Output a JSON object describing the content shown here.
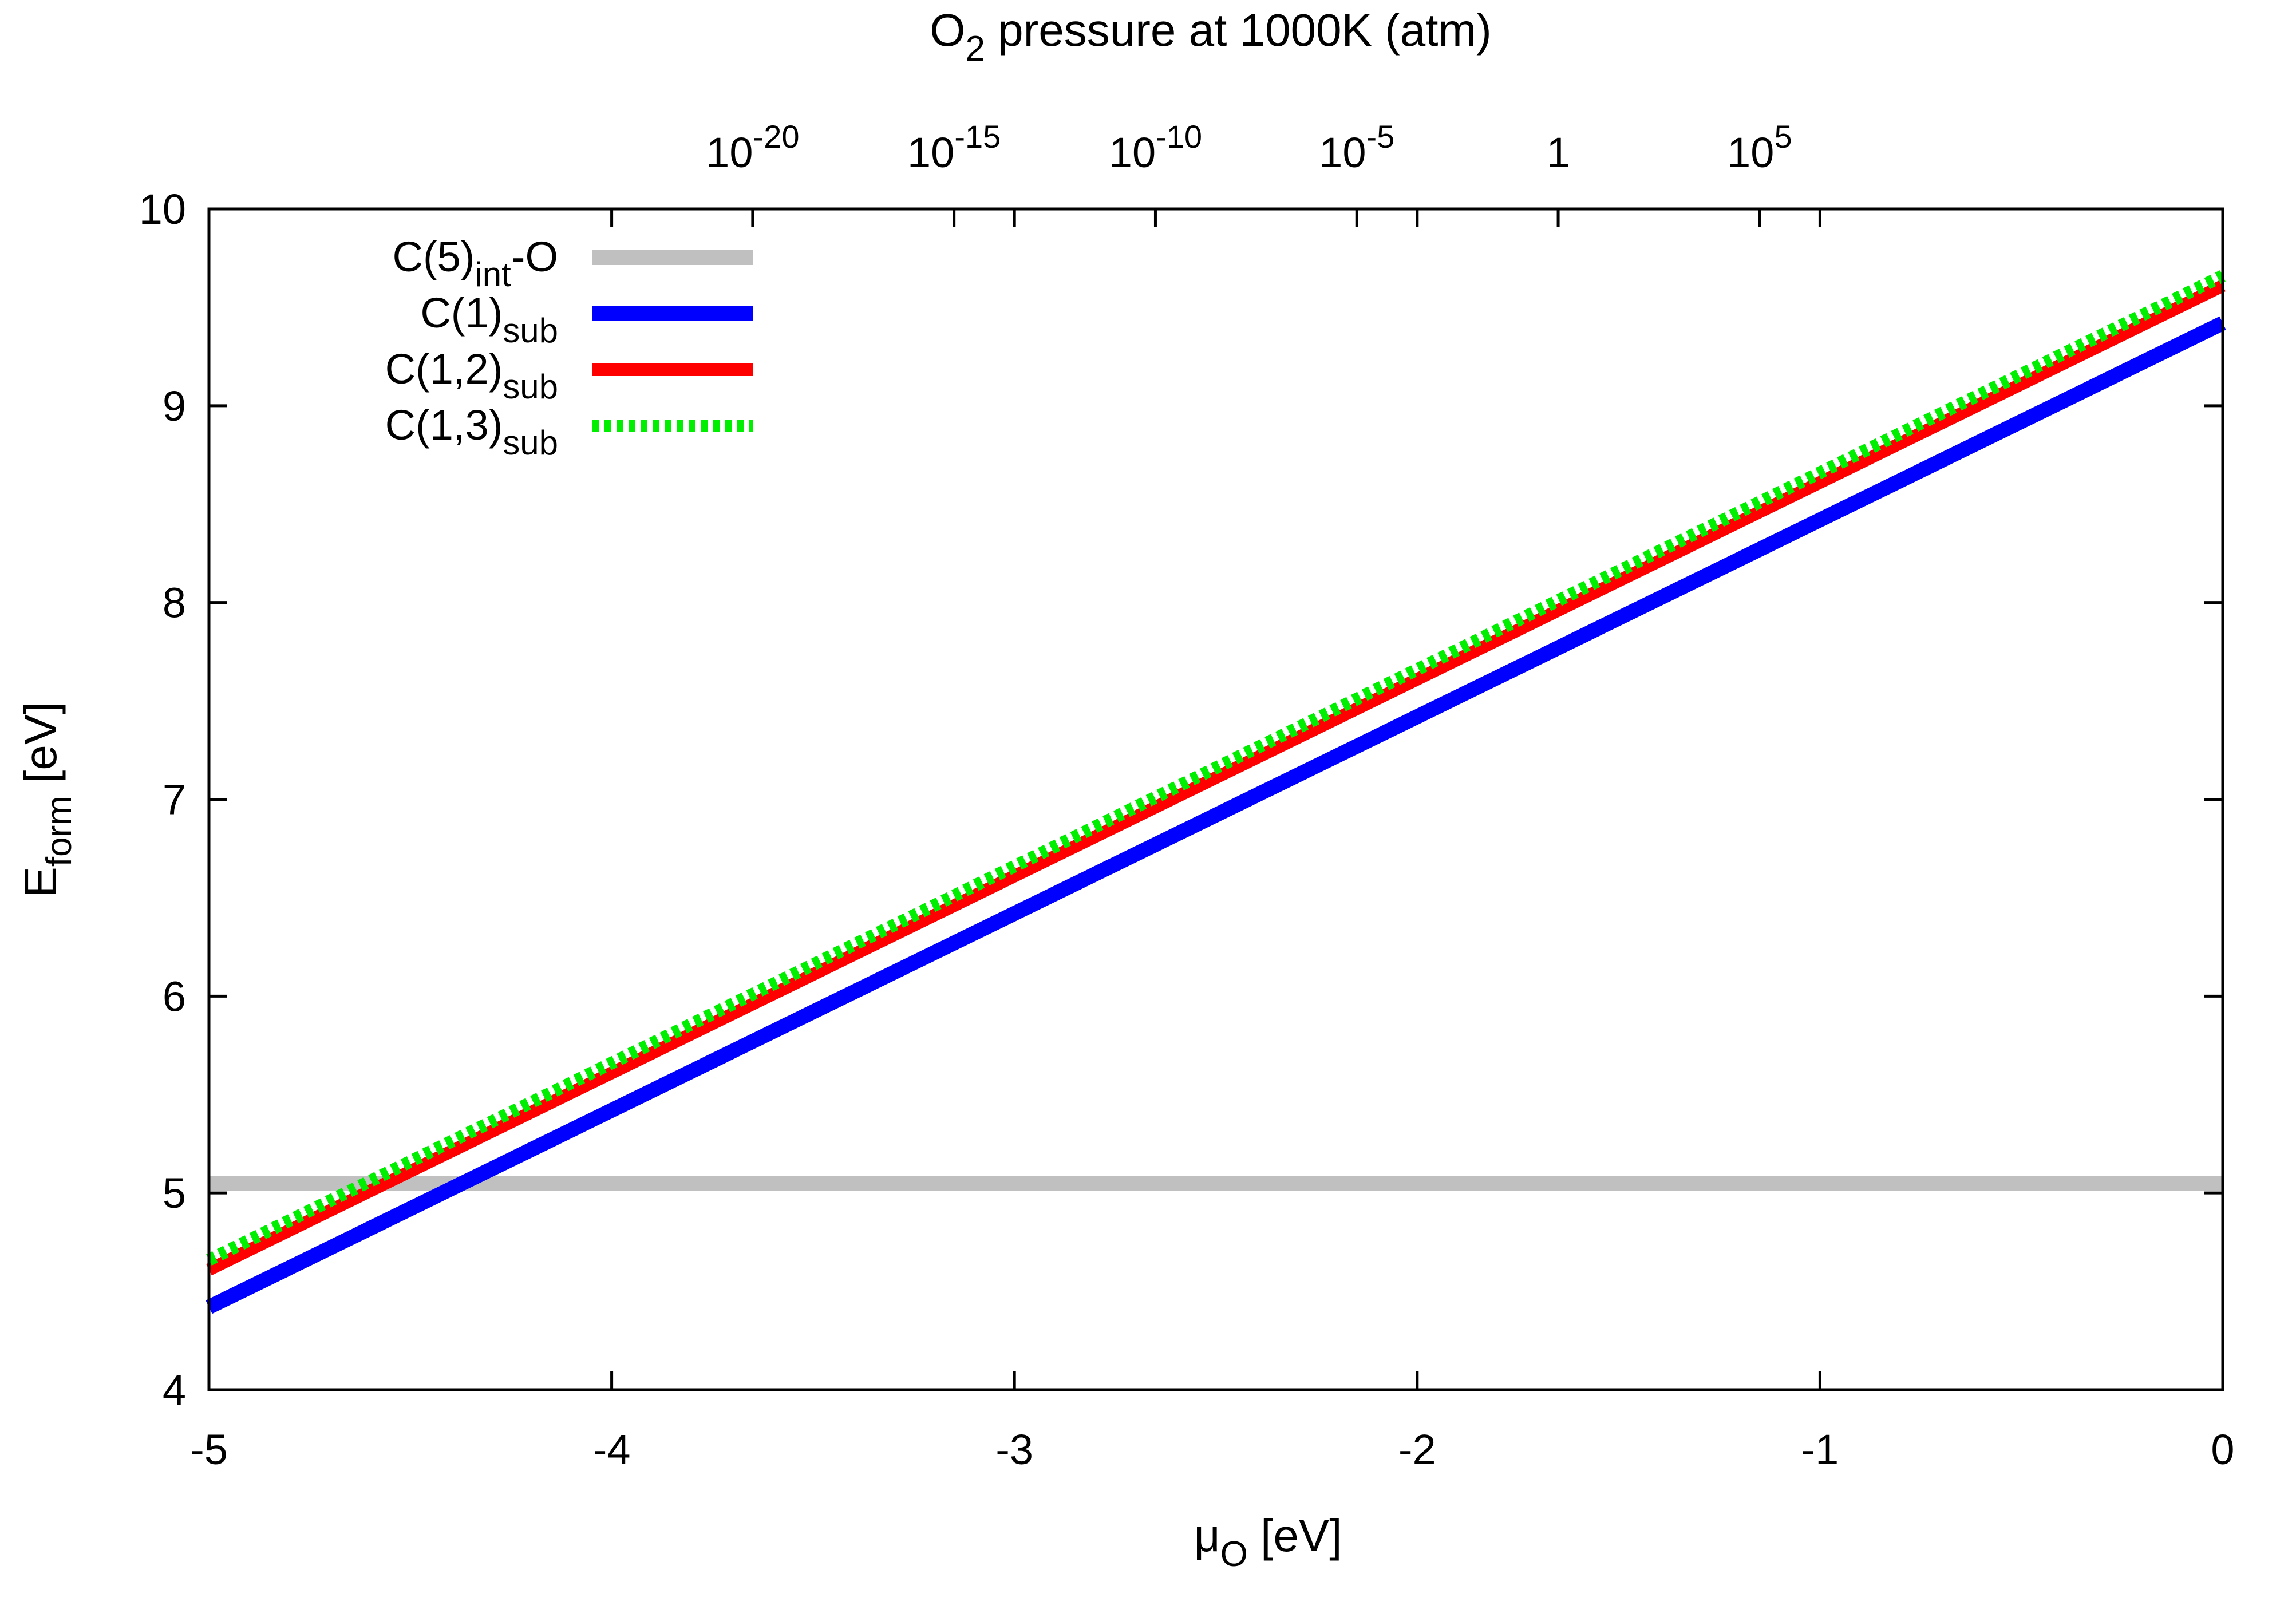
{
  "chart_data": {
    "type": "line",
    "xlabel": {
      "main": "μ",
      "sub": "O",
      "rest": " [eV]"
    },
    "ylabel": {
      "main": "E",
      "sub": "form",
      "rest": " [eV]"
    },
    "top_axis_label": {
      "pre": "O",
      "sub": "2",
      "post": " pressure at 1000K (atm)"
    },
    "xlim": [
      -5,
      0
    ],
    "ylim": [
      4,
      10
    ],
    "x_ticks": [
      -5,
      -4,
      -3,
      -2,
      -1,
      0
    ],
    "x_tick_labels": [
      "-5",
      "-4",
      "-3",
      "-2",
      "-1",
      "0"
    ],
    "y_ticks": [
      4,
      5,
      6,
      7,
      8,
      9,
      10
    ],
    "y_tick_labels": [
      "4",
      "5",
      "6",
      "7",
      "8",
      "9",
      "10"
    ],
    "top_ticks": [
      {
        "x": -3.65,
        "base": "10",
        "exp": "-20"
      },
      {
        "x": -3.15,
        "base": "10",
        "exp": "-15"
      },
      {
        "x": -2.65,
        "base": "10",
        "exp": "-10"
      },
      {
        "x": -2.15,
        "base": "10",
        "exp": "-5"
      },
      {
        "x": -1.65,
        "base": "1",
        "exp": ""
      },
      {
        "x": -1.15,
        "base": "10",
        "exp": "5"
      }
    ],
    "legend_position": "top-left",
    "series": [
      {
        "name": "C(5)int-O",
        "label_main": "C(5)",
        "label_sub": "int",
        "label_post": "-O",
        "x": [
          -5,
          0
        ],
        "y": [
          5.05,
          5.05
        ],
        "color": "#c0c0c0",
        "style": "solid"
      },
      {
        "name": "C(1)sub",
        "label_main": "C(1)",
        "label_sub": "sub",
        "label_post": "",
        "x": [
          -5,
          0
        ],
        "y": [
          4.42,
          9.42
        ],
        "color": "#0000ff",
        "style": "solid"
      },
      {
        "name": "C(1,2)sub",
        "label_main": "C(1,2)",
        "label_sub": "sub",
        "label_post": "",
        "x": [
          -5,
          0
        ],
        "y": [
          4.61,
          9.61
        ],
        "color": "#ff0000",
        "style": "solid"
      },
      {
        "name": "C(1,3)sub",
        "label_main": "C(1,3)",
        "label_sub": "sub",
        "label_post": "",
        "x": [
          -5,
          0
        ],
        "y": [
          4.66,
          9.66
        ],
        "color": "#00ee00",
        "style": "dotted"
      }
    ]
  }
}
